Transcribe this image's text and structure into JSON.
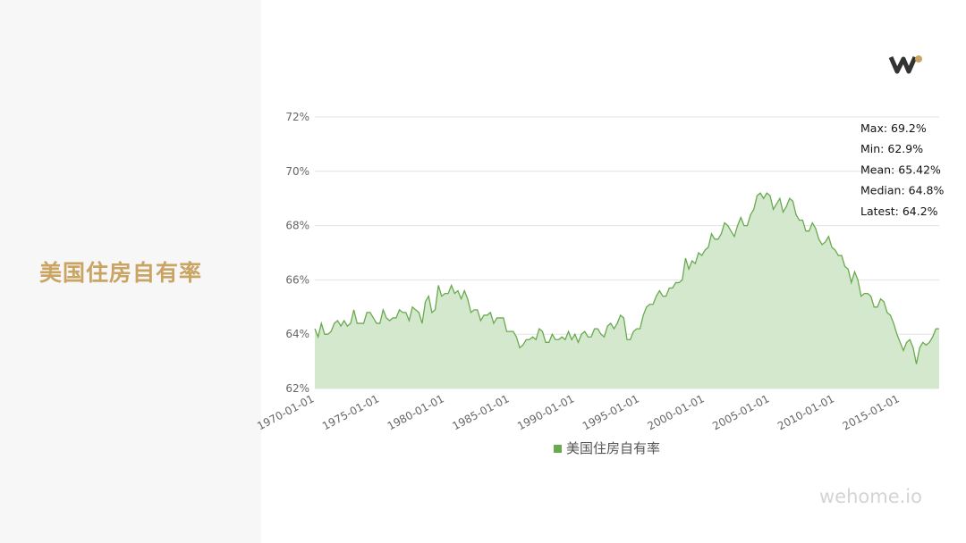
{
  "title": "美国住房自有率",
  "brand": "wehome.io",
  "chart_data": {
    "type": "area",
    "categories": [
      "1970-01-01",
      null,
      null,
      null,
      null,
      null,
      null,
      null,
      null,
      null,
      null,
      null,
      null,
      null,
      null,
      null,
      null,
      null,
      null,
      null,
      "1975-01-01",
      null,
      null,
      null,
      null,
      null,
      null,
      null,
      null,
      null,
      null,
      null,
      null,
      null,
      null,
      null,
      null,
      null,
      null,
      null,
      "1980-01-01",
      null,
      null,
      null,
      null,
      null,
      null,
      null,
      null,
      null,
      null,
      null,
      null,
      null,
      null,
      null,
      null,
      null,
      null,
      null,
      "1985-01-01",
      null,
      null,
      null,
      null,
      null,
      null,
      null,
      null,
      null,
      null,
      null,
      null,
      null,
      null,
      null,
      null,
      null,
      null,
      null,
      "1990-01-01",
      null,
      null,
      null,
      null,
      null,
      null,
      null,
      null,
      null,
      null,
      null,
      null,
      null,
      null,
      null,
      null,
      null,
      null,
      null,
      "1995-01-01",
      null,
      null,
      null,
      null,
      null,
      null,
      null,
      null,
      null,
      null,
      null,
      null,
      null,
      null,
      null,
      null,
      null,
      null,
      null,
      "2000-01-01",
      null,
      null,
      null,
      null,
      null,
      null,
      null,
      null,
      null,
      null,
      null,
      null,
      null,
      null,
      null,
      null,
      null,
      null,
      null,
      "2005-01-01",
      null,
      null,
      null,
      null,
      null,
      null,
      null,
      null,
      null,
      null,
      null,
      null,
      null,
      null,
      null,
      null,
      null,
      null,
      null,
      "2010-01-01",
      null,
      null,
      null,
      null,
      null,
      null,
      null,
      null,
      null,
      null,
      null,
      null,
      null,
      null,
      null,
      null,
      null,
      null,
      null,
      "2015-01-01",
      null,
      null,
      null,
      null,
      null,
      null,
      null,
      null,
      null,
      null,
      null,
      null
    ],
    "series": [
      {
        "name": "美国住房自有率",
        "color": "#6aaa4f",
        "fill": "#d3e8cc",
        "values": [
          64.2,
          63.9,
          64.4,
          64.0,
          64.0,
          64.1,
          64.4,
          64.5,
          64.3,
          64.5,
          64.3,
          64.4,
          64.9,
          64.4,
          64.4,
          64.4,
          64.8,
          64.8,
          64.6,
          64.4,
          64.4,
          64.9,
          64.6,
          64.5,
          64.6,
          64.6,
          64.9,
          64.8,
          64.8,
          64.5,
          65.0,
          64.9,
          64.8,
          64.4,
          65.2,
          65.4,
          64.8,
          64.9,
          65.8,
          65.4,
          65.5,
          65.5,
          65.8,
          65.5,
          65.6,
          65.3,
          65.6,
          65.3,
          64.8,
          64.9,
          64.9,
          64.5,
          64.7,
          64.7,
          64.8,
          64.4,
          64.6,
          64.6,
          64.6,
          64.1,
          64.1,
          64.1,
          63.9,
          63.5,
          63.6,
          63.8,
          63.8,
          63.9,
          63.8,
          64.2,
          64.1,
          63.7,
          63.7,
          64.0,
          63.8,
          63.8,
          63.9,
          63.8,
          64.1,
          63.8,
          64.0,
          63.7,
          64.0,
          64.1,
          63.9,
          63.9,
          64.2,
          64.2,
          64.0,
          63.9,
          64.3,
          64.4,
          64.2,
          64.4,
          64.7,
          64.6,
          63.8,
          63.8,
          64.1,
          64.2,
          64.2,
          64.7,
          65.0,
          65.1,
          65.1,
          65.4,
          65.6,
          65.4,
          65.4,
          65.7,
          65.7,
          65.9,
          65.9,
          66.0,
          66.8,
          66.4,
          66.7,
          66.6,
          67.0,
          66.9,
          67.1,
          67.2,
          67.7,
          67.5,
          67.5,
          67.7,
          68.1,
          68.0,
          67.8,
          67.6,
          68.0,
          68.3,
          68.0,
          68.0,
          68.4,
          68.6,
          69.1,
          69.2,
          69.0,
          69.2,
          69.1,
          68.6,
          68.8,
          69.0,
          68.5,
          68.7,
          69.0,
          68.9,
          68.4,
          68.2,
          68.2,
          67.8,
          67.8,
          68.1,
          67.9,
          67.5,
          67.3,
          67.4,
          67.6,
          67.2,
          67.1,
          66.9,
          66.9,
          66.5,
          66.4,
          65.9,
          66.3,
          66.0,
          65.4,
          65.5,
          65.5,
          65.4,
          65.0,
          65.0,
          65.3,
          65.2,
          64.8,
          64.7,
          64.4,
          64.0,
          63.7,
          63.4,
          63.7,
          63.8,
          63.5,
          62.9,
          63.5,
          63.7,
          63.6,
          63.7,
          63.9,
          64.2,
          64.2
        ]
      }
    ],
    "ylim": [
      62,
      72
    ],
    "yticks": [
      {
        "value": 62,
        "label": "62%"
      },
      {
        "value": 64,
        "label": "64%"
      },
      {
        "value": 66,
        "label": "66%"
      },
      {
        "value": 68,
        "label": "68%"
      },
      {
        "value": 70,
        "label": "70%"
      },
      {
        "value": 72,
        "label": "72%"
      }
    ],
    "grid": true,
    "legend": "bottom",
    "annotations": [
      "Max: 69.2%",
      "Min: 62.9%",
      "Mean: 65.42%",
      "Median: 64.8%",
      "Latest: 64.2%"
    ]
  }
}
